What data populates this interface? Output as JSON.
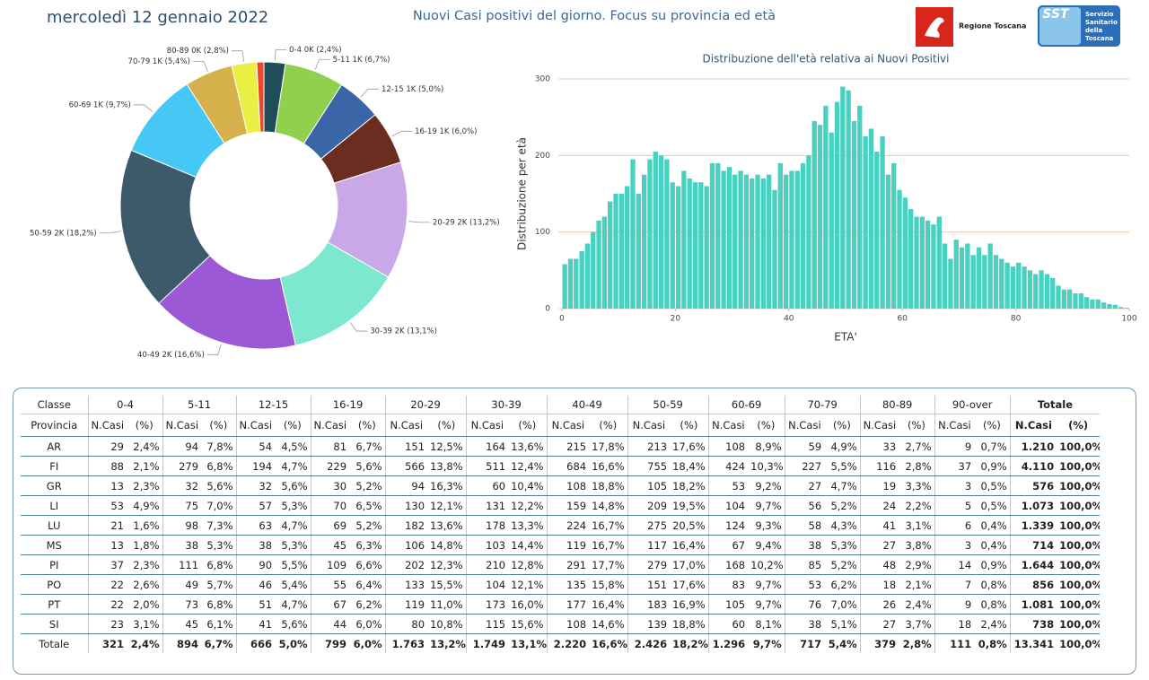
{
  "header": {
    "date": "mercoledì 12 gennaio 2022",
    "title": "Nuovi Casi positivi del giorno. Focus su provincia ed età",
    "logo_left": "Regione Toscana",
    "logo_right": {
      "abbr": "SST",
      "lines": [
        "Servizio",
        "Sanitario",
        "della",
        "Toscana"
      ]
    }
  },
  "chart_data": [
    {
      "type": "donut",
      "value_labels": [
        "0-4 0K (2,4%)",
        "5-11 1K (6,7%)",
        "12-15 1K (5,0%)",
        "16-19 1K (6,0%)",
        "20-29 2K (13,2%)",
        "30-39 2K (13,1%)",
        "40-49 2K (16,6%)",
        "50-59 2K (18,2%)",
        "60-69 1K (9,7%)",
        "70-79 1K (5,4%)",
        "80-89 0K (2,8%)",
        null
      ],
      "values": [
        2.4,
        6.7,
        5.0,
        6.0,
        13.2,
        13.1,
        16.6,
        18.2,
        9.7,
        5.4,
        2.8,
        0.8
      ],
      "colors": [
        "#1f4e5a",
        "#8fd14f",
        "#3a66a8",
        "#6b2d20",
        "#c9a8e8",
        "#7de8d0",
        "#9b59d6",
        "#3d5a6b",
        "#45c8f5",
        "#d6b04a",
        "#eaf043",
        "#e8492a"
      ]
    },
    {
      "type": "histogram",
      "title": "Distribuzione dell'età relativa ai Nuovi Positivi",
      "xlabel": "ETA'",
      "ylabel": "Distribuzione per età",
      "color": "#48d1c0",
      "grid": true,
      "bins": [
        0,
        1,
        2,
        3,
        4,
        5,
        6,
        7,
        8,
        9,
        10,
        11,
        12,
        13,
        14,
        15,
        16,
        17,
        18,
        19,
        20,
        21,
        22,
        23,
        24,
        25,
        26,
        27,
        28,
        29,
        30,
        31,
        32,
        33,
        34,
        35,
        36,
        37,
        38,
        39,
        40,
        41,
        42,
        43,
        44,
        45,
        46,
        47,
        48,
        49,
        50,
        51,
        52,
        53,
        54,
        55,
        56,
        57,
        58,
        59,
        60,
        61,
        62,
        63,
        64,
        65,
        66,
        67,
        68,
        69,
        70,
        71,
        72,
        73,
        74,
        75,
        76,
        77,
        78,
        79,
        80,
        81,
        82,
        83,
        84,
        85,
        86,
        87,
        88,
        89,
        90,
        91,
        92,
        93,
        94,
        95,
        96,
        97,
        98,
        99,
        100
      ],
      "counts": [
        58,
        65,
        65,
        75,
        85,
        100,
        115,
        120,
        140,
        150,
        150,
        160,
        195,
        150,
        175,
        195,
        205,
        200,
        195,
        165,
        160,
        180,
        170,
        165,
        165,
        160,
        190,
        190,
        180,
        185,
        175,
        180,
        175,
        170,
        175,
        170,
        175,
        155,
        190,
        175,
        180,
        180,
        190,
        200,
        245,
        240,
        265,
        230,
        270,
        290,
        285,
        245,
        265,
        225,
        235,
        205,
        225,
        175,
        190,
        155,
        145,
        130,
        120,
        120,
        115,
        110,
        120,
        85,
        65,
        90,
        80,
        85,
        70,
        80,
        70,
        85,
        70,
        65,
        60,
        55,
        60,
        55,
        50,
        45,
        50,
        45,
        40,
        30,
        25,
        25,
        20,
        20,
        15,
        12,
        12,
        8,
        6,
        5,
        2,
        1
      ],
      "xlim": [
        0,
        100
      ],
      "xticks": [
        0,
        20,
        40,
        60,
        80,
        100
      ],
      "ylim": [
        0,
        300
      ],
      "yticks": [
        0,
        100,
        200,
        300
      ]
    }
  ],
  "table": {
    "corner_top": "Classe",
    "corner_bottom": "Provincia",
    "groups": [
      "0-4",
      "5-11",
      "12-15",
      "16-19",
      "20-29",
      "30-39",
      "40-49",
      "50-59",
      "60-69",
      "70-79",
      "80-89",
      "90-over",
      "Totale"
    ],
    "subheader": [
      "N.Casi",
      "(%)",
      "N.Casi",
      "(%)",
      "N.Casi",
      "(%)",
      "N.Casi",
      "(%)",
      "N.Casi",
      "(%)",
      "N.Casi",
      "(%)",
      "N.Casi",
      "(%)",
      "N.Casi",
      "(%)",
      "N.Casi",
      "(%)",
      "N.Casi",
      "(%)",
      "N.Casi",
      "(%)",
      "N.Casi",
      "(%)",
      "N.Casi",
      "(%)"
    ],
    "rows": [
      {
        "name": "AR",
        "cells": [
          "29",
          "2,4%",
          "94",
          "7,8%",
          "54",
          "4,5%",
          "81",
          "6,7%",
          "151",
          "12,5%",
          "164",
          "13,6%",
          "215",
          "17,8%",
          "213",
          "17,6%",
          "108",
          "8,9%",
          "59",
          "4,9%",
          "33",
          "2,7%",
          "9",
          "0,7%",
          "1.210",
          "100,0%"
        ]
      },
      {
        "name": "FI",
        "cells": [
          "88",
          "2,1%",
          "279",
          "6,8%",
          "194",
          "4,7%",
          "229",
          "5,6%",
          "566",
          "13,8%",
          "511",
          "12,4%",
          "684",
          "16,6%",
          "755",
          "18,4%",
          "424",
          "10,3%",
          "227",
          "5,5%",
          "116",
          "2,8%",
          "37",
          "0,9%",
          "4.110",
          "100,0%"
        ]
      },
      {
        "name": "GR",
        "cells": [
          "13",
          "2,3%",
          "32",
          "5,6%",
          "32",
          "5,6%",
          "30",
          "5,2%",
          "94",
          "16,3%",
          "60",
          "10,4%",
          "108",
          "18,8%",
          "105",
          "18,2%",
          "53",
          "9,2%",
          "27",
          "4,7%",
          "19",
          "3,3%",
          "3",
          "0,5%",
          "576",
          "100,0%"
        ]
      },
      {
        "name": "LI",
        "cells": [
          "53",
          "4,9%",
          "75",
          "7,0%",
          "57",
          "5,3%",
          "70",
          "6,5%",
          "130",
          "12,1%",
          "131",
          "12,2%",
          "159",
          "14,8%",
          "209",
          "19,5%",
          "104",
          "9,7%",
          "56",
          "5,2%",
          "24",
          "2,2%",
          "5",
          "0,5%",
          "1.073",
          "100,0%"
        ]
      },
      {
        "name": "LU",
        "cells": [
          "21",
          "1,6%",
          "98",
          "7,3%",
          "63",
          "4,7%",
          "69",
          "5,2%",
          "182",
          "13,6%",
          "178",
          "13,3%",
          "224",
          "16,7%",
          "275",
          "20,5%",
          "124",
          "9,3%",
          "58",
          "4,3%",
          "41",
          "3,1%",
          "6",
          "0,4%",
          "1.339",
          "100,0%"
        ]
      },
      {
        "name": "MS",
        "cells": [
          "13",
          "1,8%",
          "38",
          "5,3%",
          "38",
          "5,3%",
          "45",
          "6,3%",
          "106",
          "14,8%",
          "103",
          "14,4%",
          "119",
          "16,7%",
          "117",
          "16,4%",
          "67",
          "9,4%",
          "38",
          "5,3%",
          "27",
          "3,8%",
          "3",
          "0,4%",
          "714",
          "100,0%"
        ]
      },
      {
        "name": "PI",
        "cells": [
          "37",
          "2,3%",
          "111",
          "6,8%",
          "90",
          "5,5%",
          "109",
          "6,6%",
          "202",
          "12,3%",
          "210",
          "12,8%",
          "291",
          "17,7%",
          "279",
          "17,0%",
          "168",
          "10,2%",
          "85",
          "5,2%",
          "48",
          "2,9%",
          "14",
          "0,9%",
          "1.644",
          "100,0%"
        ]
      },
      {
        "name": "PO",
        "cells": [
          "22",
          "2,6%",
          "49",
          "5,7%",
          "46",
          "5,4%",
          "55",
          "6,4%",
          "133",
          "15,5%",
          "104",
          "12,1%",
          "135",
          "15,8%",
          "151",
          "17,6%",
          "83",
          "9,7%",
          "53",
          "6,2%",
          "18",
          "2,1%",
          "7",
          "0,8%",
          "856",
          "100,0%"
        ]
      },
      {
        "name": "PT",
        "cells": [
          "22",
          "2,0%",
          "73",
          "6,8%",
          "51",
          "4,7%",
          "67",
          "6,2%",
          "119",
          "11,0%",
          "173",
          "16,0%",
          "177",
          "16,4%",
          "183",
          "16,9%",
          "105",
          "9,7%",
          "76",
          "7,0%",
          "26",
          "2,4%",
          "9",
          "0,8%",
          "1.081",
          "100,0%"
        ]
      },
      {
        "name": "SI",
        "cells": [
          "23",
          "3,1%",
          "45",
          "6,1%",
          "41",
          "5,6%",
          "44",
          "6,0%",
          "80",
          "10,8%",
          "115",
          "15,6%",
          "108",
          "14,6%",
          "139",
          "18,8%",
          "60",
          "8,1%",
          "38",
          "5,1%",
          "27",
          "3,7%",
          "18",
          "2,4%",
          "738",
          "100,0%"
        ]
      },
      {
        "name": "Totale",
        "cells": [
          "321",
          "2,4%",
          "894",
          "6,7%",
          "666",
          "5,0%",
          "799",
          "6,0%",
          "1.763",
          "13,2%",
          "1.749",
          "13,1%",
          "2.220",
          "16,6%",
          "2.426",
          "18,2%",
          "1.296",
          "9,7%",
          "717",
          "5,4%",
          "379",
          "2,8%",
          "111",
          "0,8%",
          "13.341",
          "100,0%"
        ]
      }
    ]
  }
}
